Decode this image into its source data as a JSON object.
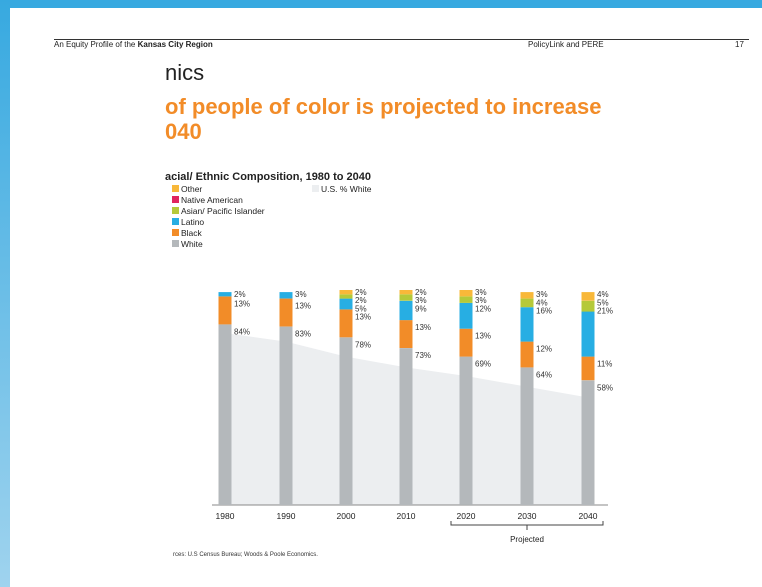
{
  "header": {
    "left_prefix": "An Equity Profile of the ",
    "left_bold": "Kansas City Region",
    "middle": "PolicyLink and PERE",
    "page_number": "17"
  },
  "section_title": "nics",
  "headline_line1": "of people of color is projected to increase",
  "headline_line2": "040",
  "source_note": "rces: U.S Census Bureau; Woods & Poole Economics.",
  "colors": {
    "white": "#b4b8bb",
    "black": "#f28c28",
    "latino": "#27aee3",
    "asian": "#b5c939",
    "native": "#e0245e",
    "other": "#f8b839",
    "us_white_area": "#eceef0",
    "accent": "#f28c28"
  },
  "chart_data": {
    "type": "bar",
    "stacked": true,
    "title": "acial/ Ethnic Composition, 1980 to 2040",
    "categories": [
      "1980",
      "1990",
      "2000",
      "2010",
      "2020",
      "2030",
      "2040"
    ],
    "series": [
      {
        "name": "White",
        "key": "white",
        "values": [
          84,
          83,
          78,
          73,
          69,
          64,
          58
        ]
      },
      {
        "name": "Black",
        "key": "black",
        "values": [
          13,
          13,
          13,
          13,
          13,
          12,
          11
        ]
      },
      {
        "name": "Latino",
        "key": "latino",
        "values": [
          2,
          3,
          5,
          9,
          12,
          16,
          21
        ]
      },
      {
        "name": "Asian/ Pacific Islander",
        "key": "asian",
        "values": [
          null,
          null,
          2,
          3,
          3,
          4,
          5
        ]
      },
      {
        "name": "Native American",
        "key": "native",
        "values": [
          null,
          null,
          null,
          null,
          null,
          null,
          null
        ]
      },
      {
        "name": "Other",
        "key": "other",
        "values": [
          null,
          null,
          2,
          2,
          3,
          3,
          4
        ]
      }
    ],
    "data_labels": [
      [
        "84%",
        "13%",
        "2%"
      ],
      [
        "83%",
        "13%",
        "3%"
      ],
      [
        "78%",
        "13%",
        "5%",
        "2%",
        "2%"
      ],
      [
        "73%",
        "13%",
        "9%",
        "3%",
        "2%"
      ],
      [
        "69%",
        "13%",
        "12%",
        "3%",
        "3%"
      ],
      [
        "64%",
        "12%",
        "16%",
        "4%",
        "3%"
      ],
      [
        "58%",
        "11%",
        "21%",
        "5%",
        "4%"
      ]
    ],
    "legend": [
      "Other",
      "Native American",
      "Asian/ Pacific Islander",
      "Latino",
      "Black",
      "White"
    ],
    "reference_series": {
      "name": "U.S. % White",
      "values": [
        80,
        76,
        69,
        64,
        60,
        55,
        50
      ]
    },
    "projected_label": "Projected",
    "projected_categories": [
      "2020",
      "2030",
      "2040"
    ],
    "ylim": [
      0,
      100
    ],
    "legend_position": "top-left"
  }
}
